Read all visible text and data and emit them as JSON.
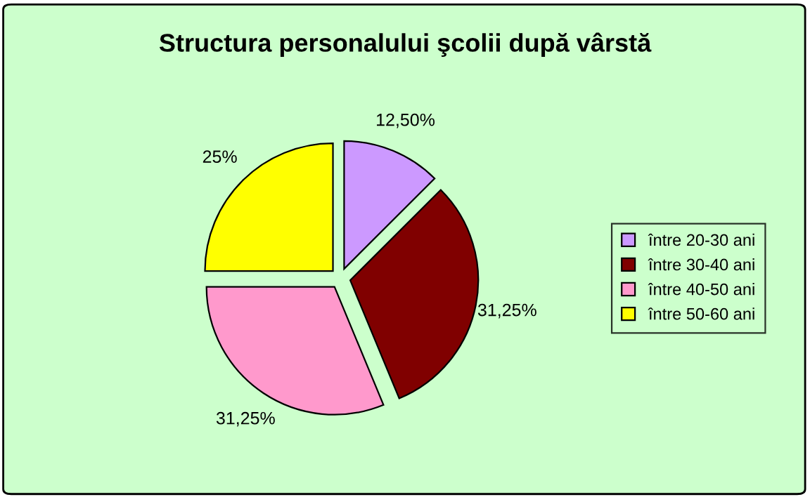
{
  "chart_data": {
    "type": "pie",
    "title": "Structura personalului şcolii după vârstă",
    "categories": [
      "între 20-30 ani",
      "între 30-40 ani",
      "între 40-50 ani",
      "între 50-60 ani"
    ],
    "values": [
      12.5,
      31.25,
      31.25,
      25
    ],
    "value_labels": [
      "12,50%",
      "31,25%",
      "31,25%",
      "25%"
    ],
    "colors": [
      "#cc99ff",
      "#800000",
      "#ff99cc",
      "#ffff00"
    ],
    "legend": "right"
  }
}
